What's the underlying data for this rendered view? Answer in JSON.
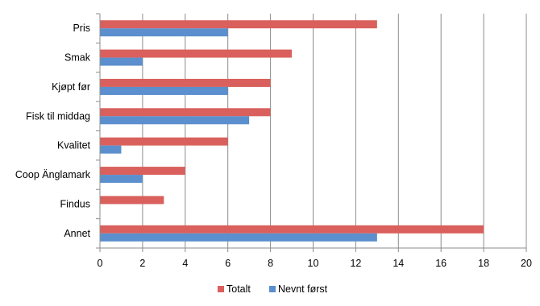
{
  "chart_data": {
    "type": "bar",
    "orientation": "horizontal",
    "categories": [
      "Pris",
      "Smak",
      "Kjøpt før",
      "Fisk til middag",
      "Kvalitet",
      "Coop Änglamark",
      "Findus",
      "Annet"
    ],
    "series": [
      {
        "name": "Totalt",
        "color": "#d9605c",
        "values": [
          13,
          9,
          8,
          8,
          6,
          4,
          3,
          18
        ]
      },
      {
        "name": "Nevnt først",
        "color": "#5b8fcd",
        "values": [
          6,
          2,
          6,
          7,
          1,
          2,
          0,
          13
        ]
      }
    ],
    "xlim": [
      0,
      20
    ],
    "xticks": [
      "0",
      "2",
      "4",
      "6",
      "8",
      "10",
      "12",
      "14",
      "16",
      "18",
      "20"
    ],
    "grid": "vertical",
    "legend": "bottom"
  }
}
